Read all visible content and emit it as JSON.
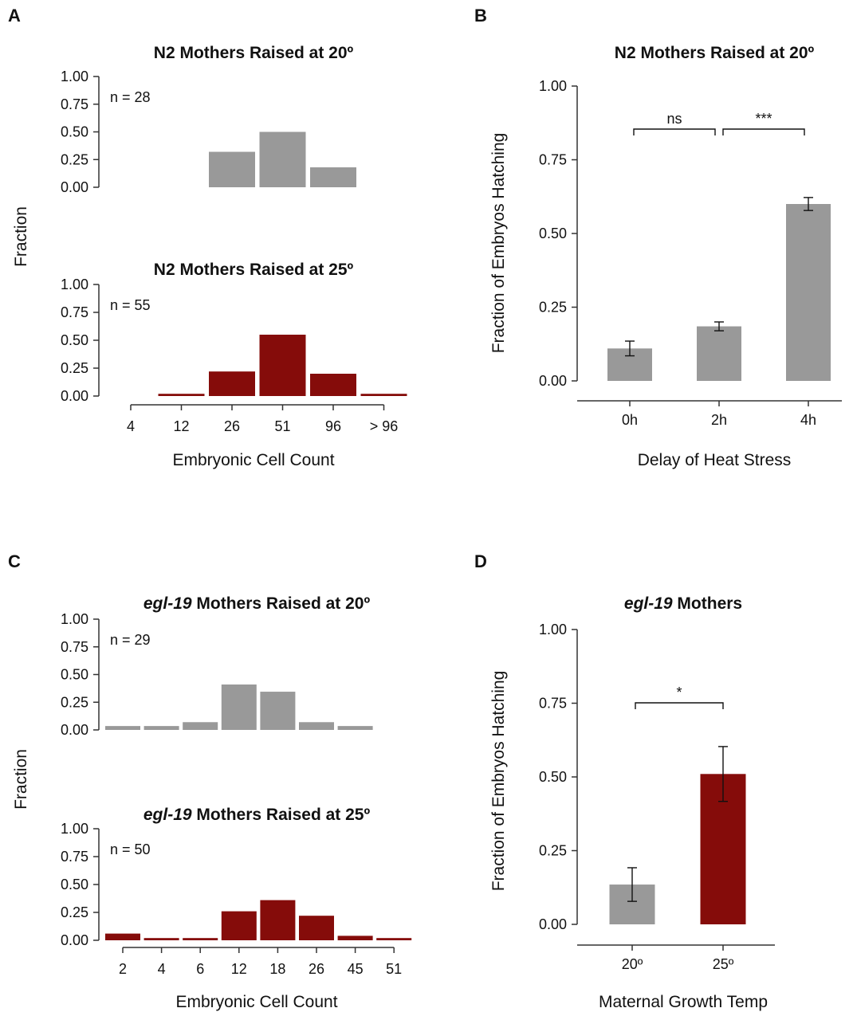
{
  "panels": [
    {
      "letter": "A"
    },
    {
      "letter": "B"
    },
    {
      "letter": "C"
    },
    {
      "letter": "D"
    }
  ],
  "colors": {
    "gray": "#999999",
    "red": "#850c0a",
    "axis": "#333333"
  },
  "chart_data": [
    {
      "id": "A-top",
      "type": "bar",
      "title_italic": "",
      "title": "N2 Mothers Raised at 20º",
      "annotation": "n = 28",
      "ylabel": "Fraction",
      "xlabel": "",
      "categories": [
        "4",
        "12",
        "26",
        "51",
        "96",
        "> 96"
      ],
      "values": [
        0,
        0,
        0.32,
        0.5,
        0.18,
        0
      ],
      "ylim": [
        0,
        1
      ],
      "yticks": [
        "0.00",
        "0.25",
        "0.50",
        "0.75",
        "1.00"
      ],
      "color": "#999999",
      "grid": false
    },
    {
      "id": "A-bottom",
      "type": "bar",
      "title_italic": "",
      "title": "N2 Mothers Raised at 25º",
      "annotation": "n = 55",
      "ylabel": "",
      "xlabel": "Embryonic Cell Count",
      "categories": [
        "4",
        "12",
        "26",
        "51",
        "96",
        "> 96"
      ],
      "values": [
        0,
        0.02,
        0.22,
        0.55,
        0.2,
        0.02
      ],
      "ylim": [
        0,
        1
      ],
      "yticks": [
        "0.00",
        "0.25",
        "0.50",
        "0.75",
        "1.00"
      ],
      "color": "#850c0a",
      "grid": false
    },
    {
      "id": "B",
      "type": "bar",
      "title_italic": "",
      "title": "N2 Mothers Raised at 20º",
      "ylabel": "Fraction of Embryos Hatching",
      "xlabel": "Delay of Heat Stress",
      "categories": [
        "0h",
        "2h",
        "4h"
      ],
      "values": [
        0.11,
        0.185,
        0.6
      ],
      "errors": [
        0.025,
        0.015,
        0.022
      ],
      "colors": [
        "#999999",
        "#999999",
        "#999999"
      ],
      "ylim": [
        0,
        1
      ],
      "yticks": [
        "0.00",
        "0.25",
        "0.50",
        "0.75",
        "1.00"
      ],
      "significance": [
        {
          "from": 0,
          "to": 1,
          "label": "ns"
        },
        {
          "from": 1,
          "to": 2,
          "label": "***"
        }
      ],
      "grid": false
    },
    {
      "id": "C-top",
      "type": "bar",
      "title_italic": "egl-19",
      "title": " Mothers Raised at 20º",
      "annotation": "n = 29",
      "ylabel": "Fraction",
      "xlabel": "",
      "categories": [
        "2",
        "4",
        "6",
        "12",
        "18",
        "26",
        "45",
        "51"
      ],
      "values": [
        0.035,
        0.035,
        0.07,
        0.41,
        0.345,
        0.07,
        0.035,
        0
      ],
      "ylim": [
        0,
        1
      ],
      "yticks": [
        "0.00",
        "0.25",
        "0.50",
        "0.75",
        "1.00"
      ],
      "color": "#999999",
      "grid": false
    },
    {
      "id": "C-bottom",
      "type": "bar",
      "title_italic": "egl-19",
      "title": " Mothers Raised at 25º",
      "annotation": "n = 50",
      "ylabel": "",
      "xlabel": "Embryonic Cell Count",
      "categories": [
        "2",
        "4",
        "6",
        "12",
        "18",
        "26",
        "45",
        "51"
      ],
      "values": [
        0.06,
        0.02,
        0.02,
        0.26,
        0.36,
        0.22,
        0.04,
        0.02
      ],
      "ylim": [
        0,
        1
      ],
      "yticks": [
        "0.00",
        "0.25",
        "0.50",
        "0.75",
        "1.00"
      ],
      "color": "#850c0a",
      "grid": false
    },
    {
      "id": "D",
      "type": "bar",
      "title_italic": "egl-19",
      "title": " Mothers",
      "ylabel": "Fraction of Embryos Hatching",
      "xlabel": "Maternal Growth Temp",
      "categories": [
        "20º",
        "25º"
      ],
      "values": [
        0.135,
        0.51
      ],
      "errors": [
        0.057,
        0.093
      ],
      "colors": [
        "#999999",
        "#850c0a"
      ],
      "ylim": [
        0,
        1
      ],
      "yticks": [
        "0.00",
        "0.25",
        "0.50",
        "0.75",
        "1.00"
      ],
      "significance": [
        {
          "from": 0,
          "to": 1,
          "label": "*"
        }
      ],
      "grid": false
    }
  ]
}
